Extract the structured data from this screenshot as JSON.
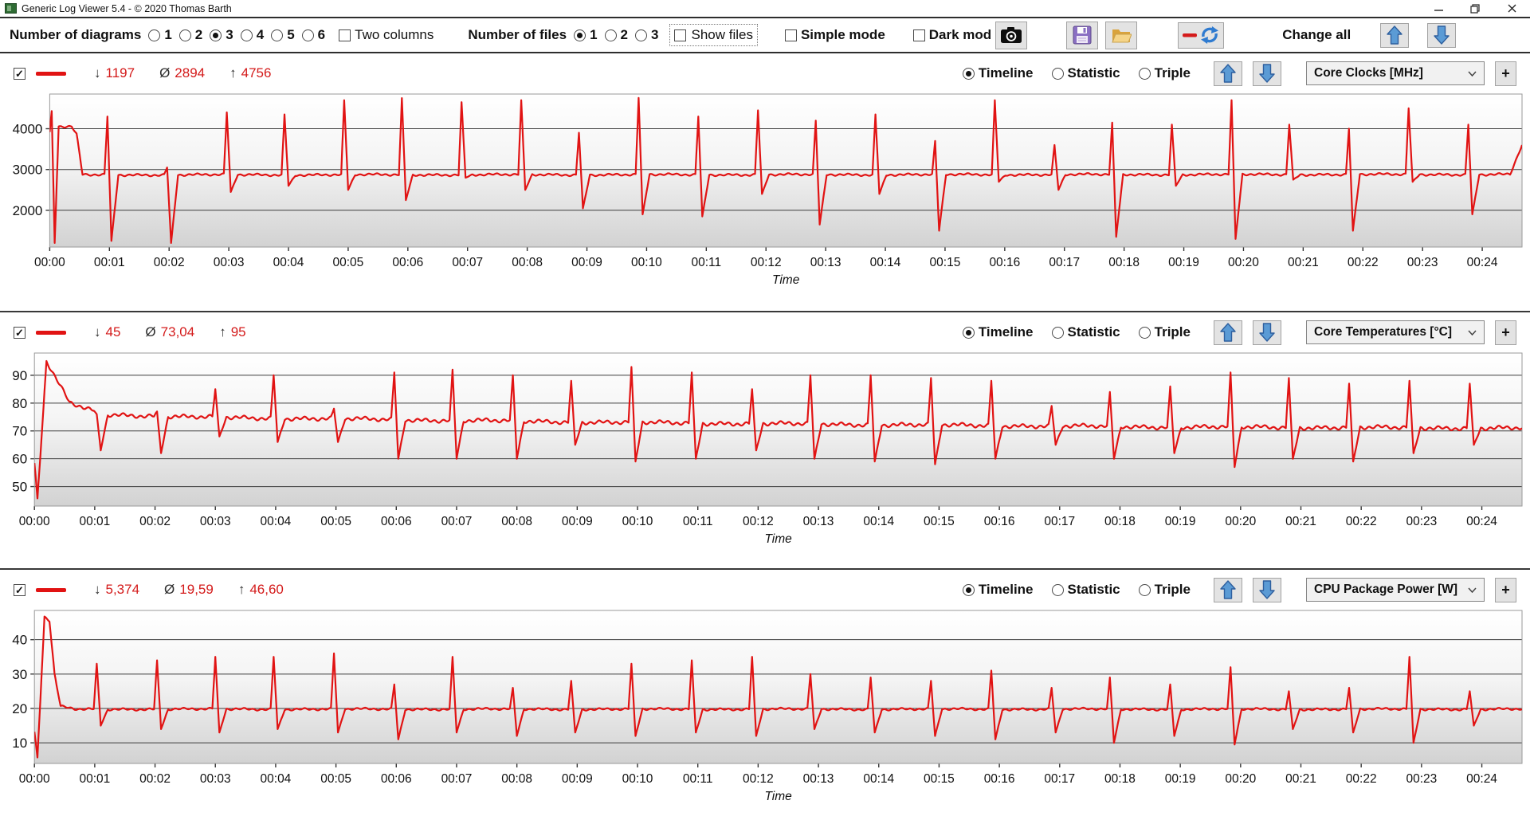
{
  "window": {
    "title": "Generic Log Viewer 5.4 - © 2020 Thomas Barth"
  },
  "icons": {
    "app": "app-logo",
    "minimize": "minimize",
    "restore": "restore-window",
    "close": "close-window",
    "camera": "screenshot-camera",
    "save": "floppy-save",
    "open": "folder-open",
    "line_refresh": "red-line-refresh",
    "arrow_up": "blue-arrow-up",
    "arrow_down": "blue-arrow-down",
    "chevron": "chevron-down"
  },
  "toolbar": {
    "diagrams_label": "Number of diagrams",
    "diagram_options": [
      "1",
      "2",
      "3",
      "4",
      "5",
      "6"
    ],
    "diagrams_selected": "3",
    "two_columns_label": "Two columns",
    "files_label": "Number of files",
    "file_options": [
      "1",
      "2",
      "3"
    ],
    "files_selected": "1",
    "show_files_label": "Show files",
    "simple_mode_label": "Simple mode",
    "dark_mode_label": "Dark mod",
    "change_all_label": "Change all"
  },
  "panel_labels": {
    "timeline": "Timeline",
    "statistic": "Statistic",
    "triple": "Triple",
    "min_symbol": "↓",
    "avg_symbol": "Ø",
    "max_symbol": "↑",
    "plus": "+",
    "check": "✓"
  },
  "panels": [
    {
      "min": "1197",
      "avg": "2894",
      "max": "4756",
      "metric": "Core Clocks [MHz]",
      "view_selected": "Timeline",
      "enabled": true
    },
    {
      "min": "45",
      "avg": "73,04",
      "max": "95",
      "metric": "Core Temperatures [°C]",
      "view_selected": "Timeline",
      "enabled": true
    },
    {
      "min": "5,374",
      "avg": "19,59",
      "max": "46,60",
      "metric": "CPU Package Power [W]",
      "view_selected": "Timeline",
      "enabled": true
    }
  ],
  "chart_data": [
    {
      "type": "line",
      "title": "Core Clocks [MHz]",
      "xlabel": "Time",
      "line_color": "#e11313",
      "xlim": [
        0,
        1480
      ],
      "ylim": [
        1100,
        4850
      ],
      "yticks": [
        2000,
        3000,
        4000
      ],
      "xtick_labels": [
        "00:00",
        "00:01",
        "00:02",
        "00:03",
        "00:04",
        "00:05",
        "00:06",
        "00:07",
        "00:08",
        "00:09",
        "00:10",
        "00:11",
        "00:12",
        "00:13",
        "00:14",
        "00:15",
        "00:16",
        "00:17",
        "00:18",
        "00:19",
        "00:20",
        "00:21",
        "00:22",
        "00:23",
        "00:24"
      ],
      "stats": {
        "min": 1197,
        "avg": 2894,
        "max": 4756
      },
      "baseline_points": [
        [
          0,
          3900
        ],
        [
          2,
          4400
        ],
        [
          5,
          1197
        ],
        [
          9,
          4050
        ],
        [
          22,
          4050
        ],
        [
          27,
          3850
        ],
        [
          33,
          2870
        ],
        [
          1468,
          2880
        ],
        [
          1480,
          3600
        ]
      ],
      "noise_amp": 38,
      "spikes": [
        [
          58,
          4300,
          1250
        ],
        [
          118,
          3050,
          1200
        ],
        [
          178,
          4400,
          2450
        ],
        [
          236,
          4350,
          2600
        ],
        [
          296,
          4700,
          2500
        ],
        [
          354,
          4750,
          2250
        ],
        [
          414,
          4650,
          2800
        ],
        [
          474,
          4700,
          2500
        ],
        [
          532,
          3900,
          2050
        ],
        [
          592,
          4756,
          1900
        ],
        [
          652,
          4300,
          1850
        ],
        [
          712,
          4450,
          2400
        ],
        [
          770,
          4200,
          1650
        ],
        [
          830,
          4350,
          2400
        ],
        [
          890,
          3700,
          1500
        ],
        [
          950,
          4700,
          2700
        ],
        [
          1010,
          3600,
          2500
        ],
        [
          1068,
          4150,
          1350
        ],
        [
          1128,
          4100,
          2600
        ],
        [
          1188,
          4700,
          1300
        ],
        [
          1246,
          4100,
          2750
        ],
        [
          1306,
          4000,
          1500
        ],
        [
          1366,
          4500,
          2700
        ],
        [
          1426,
          4100,
          1900
        ]
      ]
    },
    {
      "type": "line",
      "title": "Core Temperatures [°C]",
      "xlabel": "Time",
      "line_color": "#e11313",
      "xlim": [
        0,
        1480
      ],
      "ylim": [
        43,
        98
      ],
      "yticks": [
        50,
        60,
        70,
        80,
        90
      ],
      "xtick_labels": [
        "00:00",
        "00:01",
        "00:02",
        "00:03",
        "00:04",
        "00:05",
        "00:06",
        "00:07",
        "00:08",
        "00:09",
        "00:10",
        "00:11",
        "00:12",
        "00:13",
        "00:14",
        "00:15",
        "00:16",
        "00:17",
        "00:18",
        "00:19",
        "00:20",
        "00:21",
        "00:22",
        "00:23",
        "00:24"
      ],
      "stats": {
        "min": 45,
        "avg": 73.04,
        "max": 95
      },
      "baseline_points": [
        [
          0,
          58
        ],
        [
          3,
          45
        ],
        [
          12,
          95
        ],
        [
          18,
          91
        ],
        [
          35,
          80
        ],
        [
          70,
          76
        ],
        [
          150,
          75
        ],
        [
          600,
          73
        ],
        [
          1100,
          71.5
        ],
        [
          1480,
          71
        ]
      ],
      "noise_amp": 1.0,
      "spikes": [
        [
          62,
          76,
          63
        ],
        [
          122,
          77,
          62
        ],
        [
          180,
          85,
          68
        ],
        [
          238,
          90,
          66
        ],
        [
          298,
          78,
          66
        ],
        [
          358,
          91,
          60
        ],
        [
          416,
          92,
          60
        ],
        [
          476,
          90,
          60
        ],
        [
          534,
          88,
          65
        ],
        [
          594,
          93,
          59
        ],
        [
          654,
          91,
          60
        ],
        [
          714,
          85,
          63
        ],
        [
          772,
          90,
          60
        ],
        [
          832,
          90,
          59
        ],
        [
          892,
          89,
          58
        ],
        [
          952,
          88,
          60
        ],
        [
          1012,
          79,
          65
        ],
        [
          1070,
          84,
          60
        ],
        [
          1130,
          86,
          62
        ],
        [
          1190,
          91,
          57
        ],
        [
          1248,
          89,
          60
        ],
        [
          1308,
          87,
          59
        ],
        [
          1368,
          88,
          62
        ],
        [
          1428,
          87,
          65
        ]
      ]
    },
    {
      "type": "line",
      "title": "CPU Package Power [W]",
      "xlabel": "Time",
      "line_color": "#e11313",
      "xlim": [
        0,
        1480
      ],
      "ylim": [
        4,
        48.5
      ],
      "yticks": [
        10,
        20,
        30,
        40
      ],
      "xtick_labels": [
        "00:00",
        "00:01",
        "00:02",
        "00:03",
        "00:04",
        "00:05",
        "00:06",
        "00:07",
        "00:08",
        "00:09",
        "00:10",
        "00:11",
        "00:12",
        "00:13",
        "00:14",
        "00:15",
        "00:16",
        "00:17",
        "00:18",
        "00:19",
        "00:20",
        "00:21",
        "00:22",
        "00:23",
        "00:24"
      ],
      "stats": {
        "min": 5.374,
        "avg": 19.59,
        "max": 46.6
      },
      "baseline_points": [
        [
          0,
          13
        ],
        [
          3,
          5.4
        ],
        [
          10,
          46.6
        ],
        [
          15,
          45.5
        ],
        [
          20,
          30
        ],
        [
          26,
          20.5
        ],
        [
          40,
          19.8
        ],
        [
          1480,
          19.8
        ]
      ],
      "noise_amp": 0.45,
      "spikes": [
        [
          62,
          33,
          15
        ],
        [
          122,
          34,
          14
        ],
        [
          180,
          35,
          13
        ],
        [
          238,
          35,
          14
        ],
        [
          298,
          36,
          13
        ],
        [
          358,
          27,
          11
        ],
        [
          416,
          35,
          13
        ],
        [
          476,
          26,
          12
        ],
        [
          534,
          28,
          13
        ],
        [
          594,
          33,
          12
        ],
        [
          654,
          34,
          13
        ],
        [
          714,
          35,
          12
        ],
        [
          772,
          30,
          14
        ],
        [
          832,
          29,
          13
        ],
        [
          892,
          28,
          12
        ],
        [
          952,
          31,
          11
        ],
        [
          1012,
          26,
          13
        ],
        [
          1070,
          29,
          10
        ],
        [
          1130,
          27,
          12
        ],
        [
          1190,
          32,
          9.5
        ],
        [
          1248,
          25,
          14
        ],
        [
          1308,
          26,
          13
        ],
        [
          1368,
          35,
          10
        ],
        [
          1428,
          25,
          15
        ]
      ]
    }
  ]
}
